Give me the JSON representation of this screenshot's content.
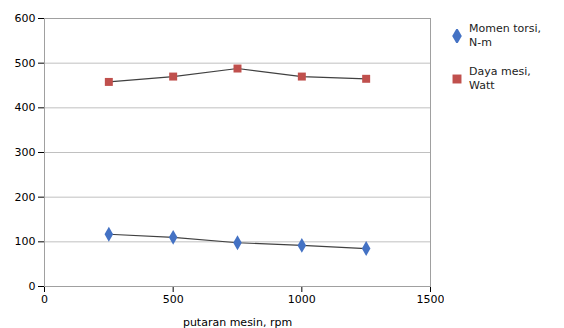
{
  "chart_data": {
    "type": "line",
    "xlabel": "putaran mesin, rpm",
    "x": [
      250,
      500,
      750,
      1000,
      1250
    ],
    "series": [
      {
        "name": "Momen torsi,\nN-m",
        "color": "#4472C4",
        "marker": "diamond",
        "values": [
          117,
          110,
          98,
          92,
          85
        ]
      },
      {
        "name": "Daya mesi,\nWatt",
        "color": "#C0504D",
        "marker": "square",
        "values": [
          458,
          470,
          488,
          470,
          465
        ]
      }
    ],
    "color": "#404040",
    "xlim": [
      0,
      1500
    ],
    "xticks": [
      0,
      500,
      1000,
      1500
    ],
    "ylim": [
      0,
      600
    ],
    "yticks": [
      0,
      100,
      200,
      300,
      400,
      500,
      600
    ],
    "grid": "y",
    "legend": "upper right"
  }
}
